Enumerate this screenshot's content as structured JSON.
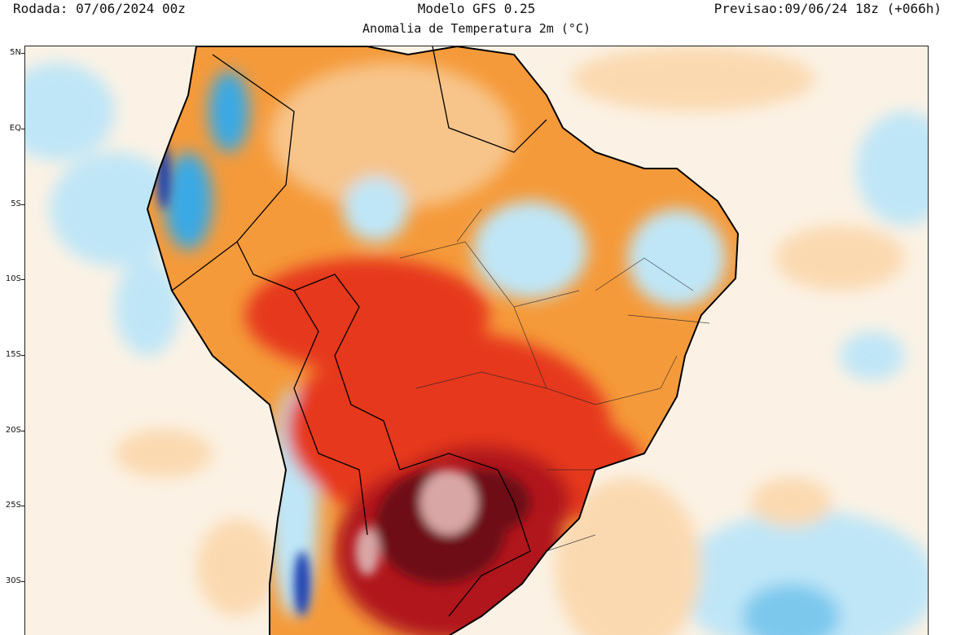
{
  "header": {
    "left": "Rodada: 07/06/2024 00z",
    "center": "Modelo GFS 0.25",
    "right": "Previsao:09/06/24 18z (+066h)",
    "subtitle": "Anomalia de Temperatura 2m (°C)"
  },
  "axis": {
    "lat_labels": [
      "5N",
      "EQ",
      "5S",
      "10S",
      "15S",
      "20S",
      "25S",
      "30S"
    ]
  },
  "colors": {
    "warm_light": "#fbd9b0",
    "warm_orange": "#f59a3a",
    "warm_red": "#e6391b",
    "hot_dark": "#b0121a",
    "extreme": "#6e0d14",
    "extreme_pale": "#d9a6a6",
    "cold_light": "#bfe6f7",
    "cold_blue": "#3aa9e4",
    "cold_dark": "#1a3fb0"
  }
}
